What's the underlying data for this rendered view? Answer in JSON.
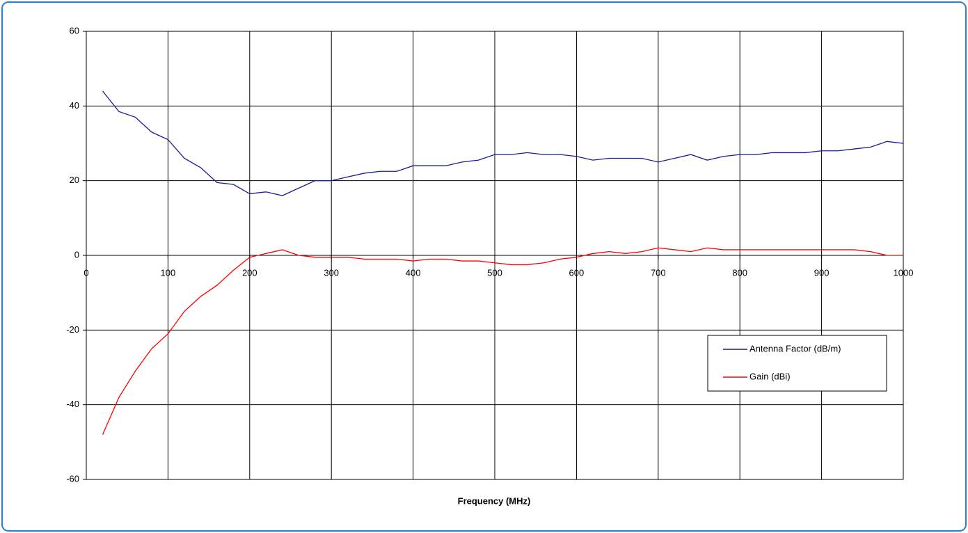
{
  "chart_data": {
    "type": "line",
    "xlabel": "Frequency (MHz)",
    "x": [
      20,
      40,
      60,
      80,
      100,
      120,
      140,
      160,
      180,
      200,
      220,
      240,
      260,
      280,
      300,
      320,
      340,
      360,
      380,
      400,
      420,
      440,
      460,
      480,
      500,
      520,
      540,
      560,
      580,
      600,
      620,
      640,
      660,
      680,
      700,
      720,
      740,
      760,
      780,
      800,
      820,
      840,
      860,
      880,
      900,
      920,
      940,
      960,
      980,
      1000
    ],
    "series": [
      {
        "name": "Antenna Factor (dB/m)",
        "color": "#1a1a99",
        "values": [
          44,
          38.5,
          37,
          33,
          31,
          26,
          23.5,
          19.5,
          19,
          16.5,
          17,
          16,
          18,
          20,
          20,
          21,
          22,
          22.5,
          22.5,
          24,
          24,
          24,
          25,
          25.5,
          27,
          27,
          27.5,
          27,
          27,
          26.5,
          25.5,
          26,
          26,
          26,
          25,
          26,
          27,
          25.5,
          26.5,
          27,
          27,
          27.5,
          27.5,
          27.5,
          28,
          28,
          28.5,
          29,
          30.5,
          30
        ]
      },
      {
        "name": "Gain (dBi)",
        "color": "#ff0000",
        "values": [
          -48,
          -38,
          -31,
          -25,
          -21,
          -15,
          -11,
          -8,
          -4,
          -0.5,
          0.5,
          1.5,
          0,
          -0.5,
          -0.5,
          -0.5,
          -1,
          -1,
          -1,
          -1.5,
          -1,
          -1,
          -1.5,
          -1.5,
          -2,
          -2.5,
          -2.5,
          -2,
          -1,
          -0.5,
          0.5,
          1,
          0.5,
          1,
          2,
          1.5,
          1,
          2,
          1.5,
          1.5,
          1.5,
          1.5,
          1.5,
          1.5,
          1.5,
          1.5,
          1.5,
          1,
          0,
          0
        ]
      }
    ],
    "xlim": [
      0,
      1000
    ],
    "xticks": [
      0,
      100,
      200,
      300,
      400,
      500,
      600,
      700,
      800,
      900,
      1000
    ],
    "ylim": [
      -60,
      60
    ],
    "yticks": [
      -60,
      -40,
      -20,
      0,
      20,
      40,
      60
    ],
    "grid": true,
    "legend": "right"
  }
}
